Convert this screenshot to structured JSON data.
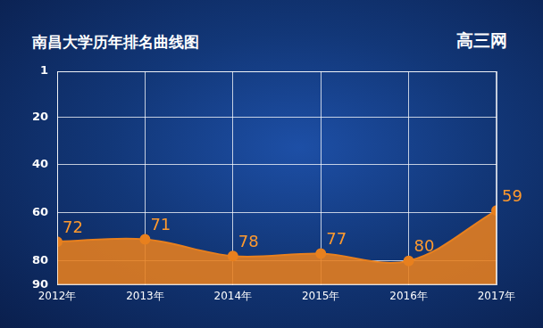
{
  "chart_data": {
    "type": "line",
    "title": "南昌大学历年排名曲线图",
    "annotations": [
      "高三网"
    ],
    "categories": [
      "2012年",
      "2013年",
      "2014年",
      "2015年",
      "2016年",
      "2017年"
    ],
    "values": [
      72,
      71,
      78,
      77,
      80,
      59
    ],
    "color": "#e8801e",
    "ylim": [
      90,
      1
    ],
    "yticks": [
      1,
      20,
      40,
      60,
      80,
      90
    ],
    "grid": true,
    "data_labels": true,
    "marker": "circle"
  }
}
